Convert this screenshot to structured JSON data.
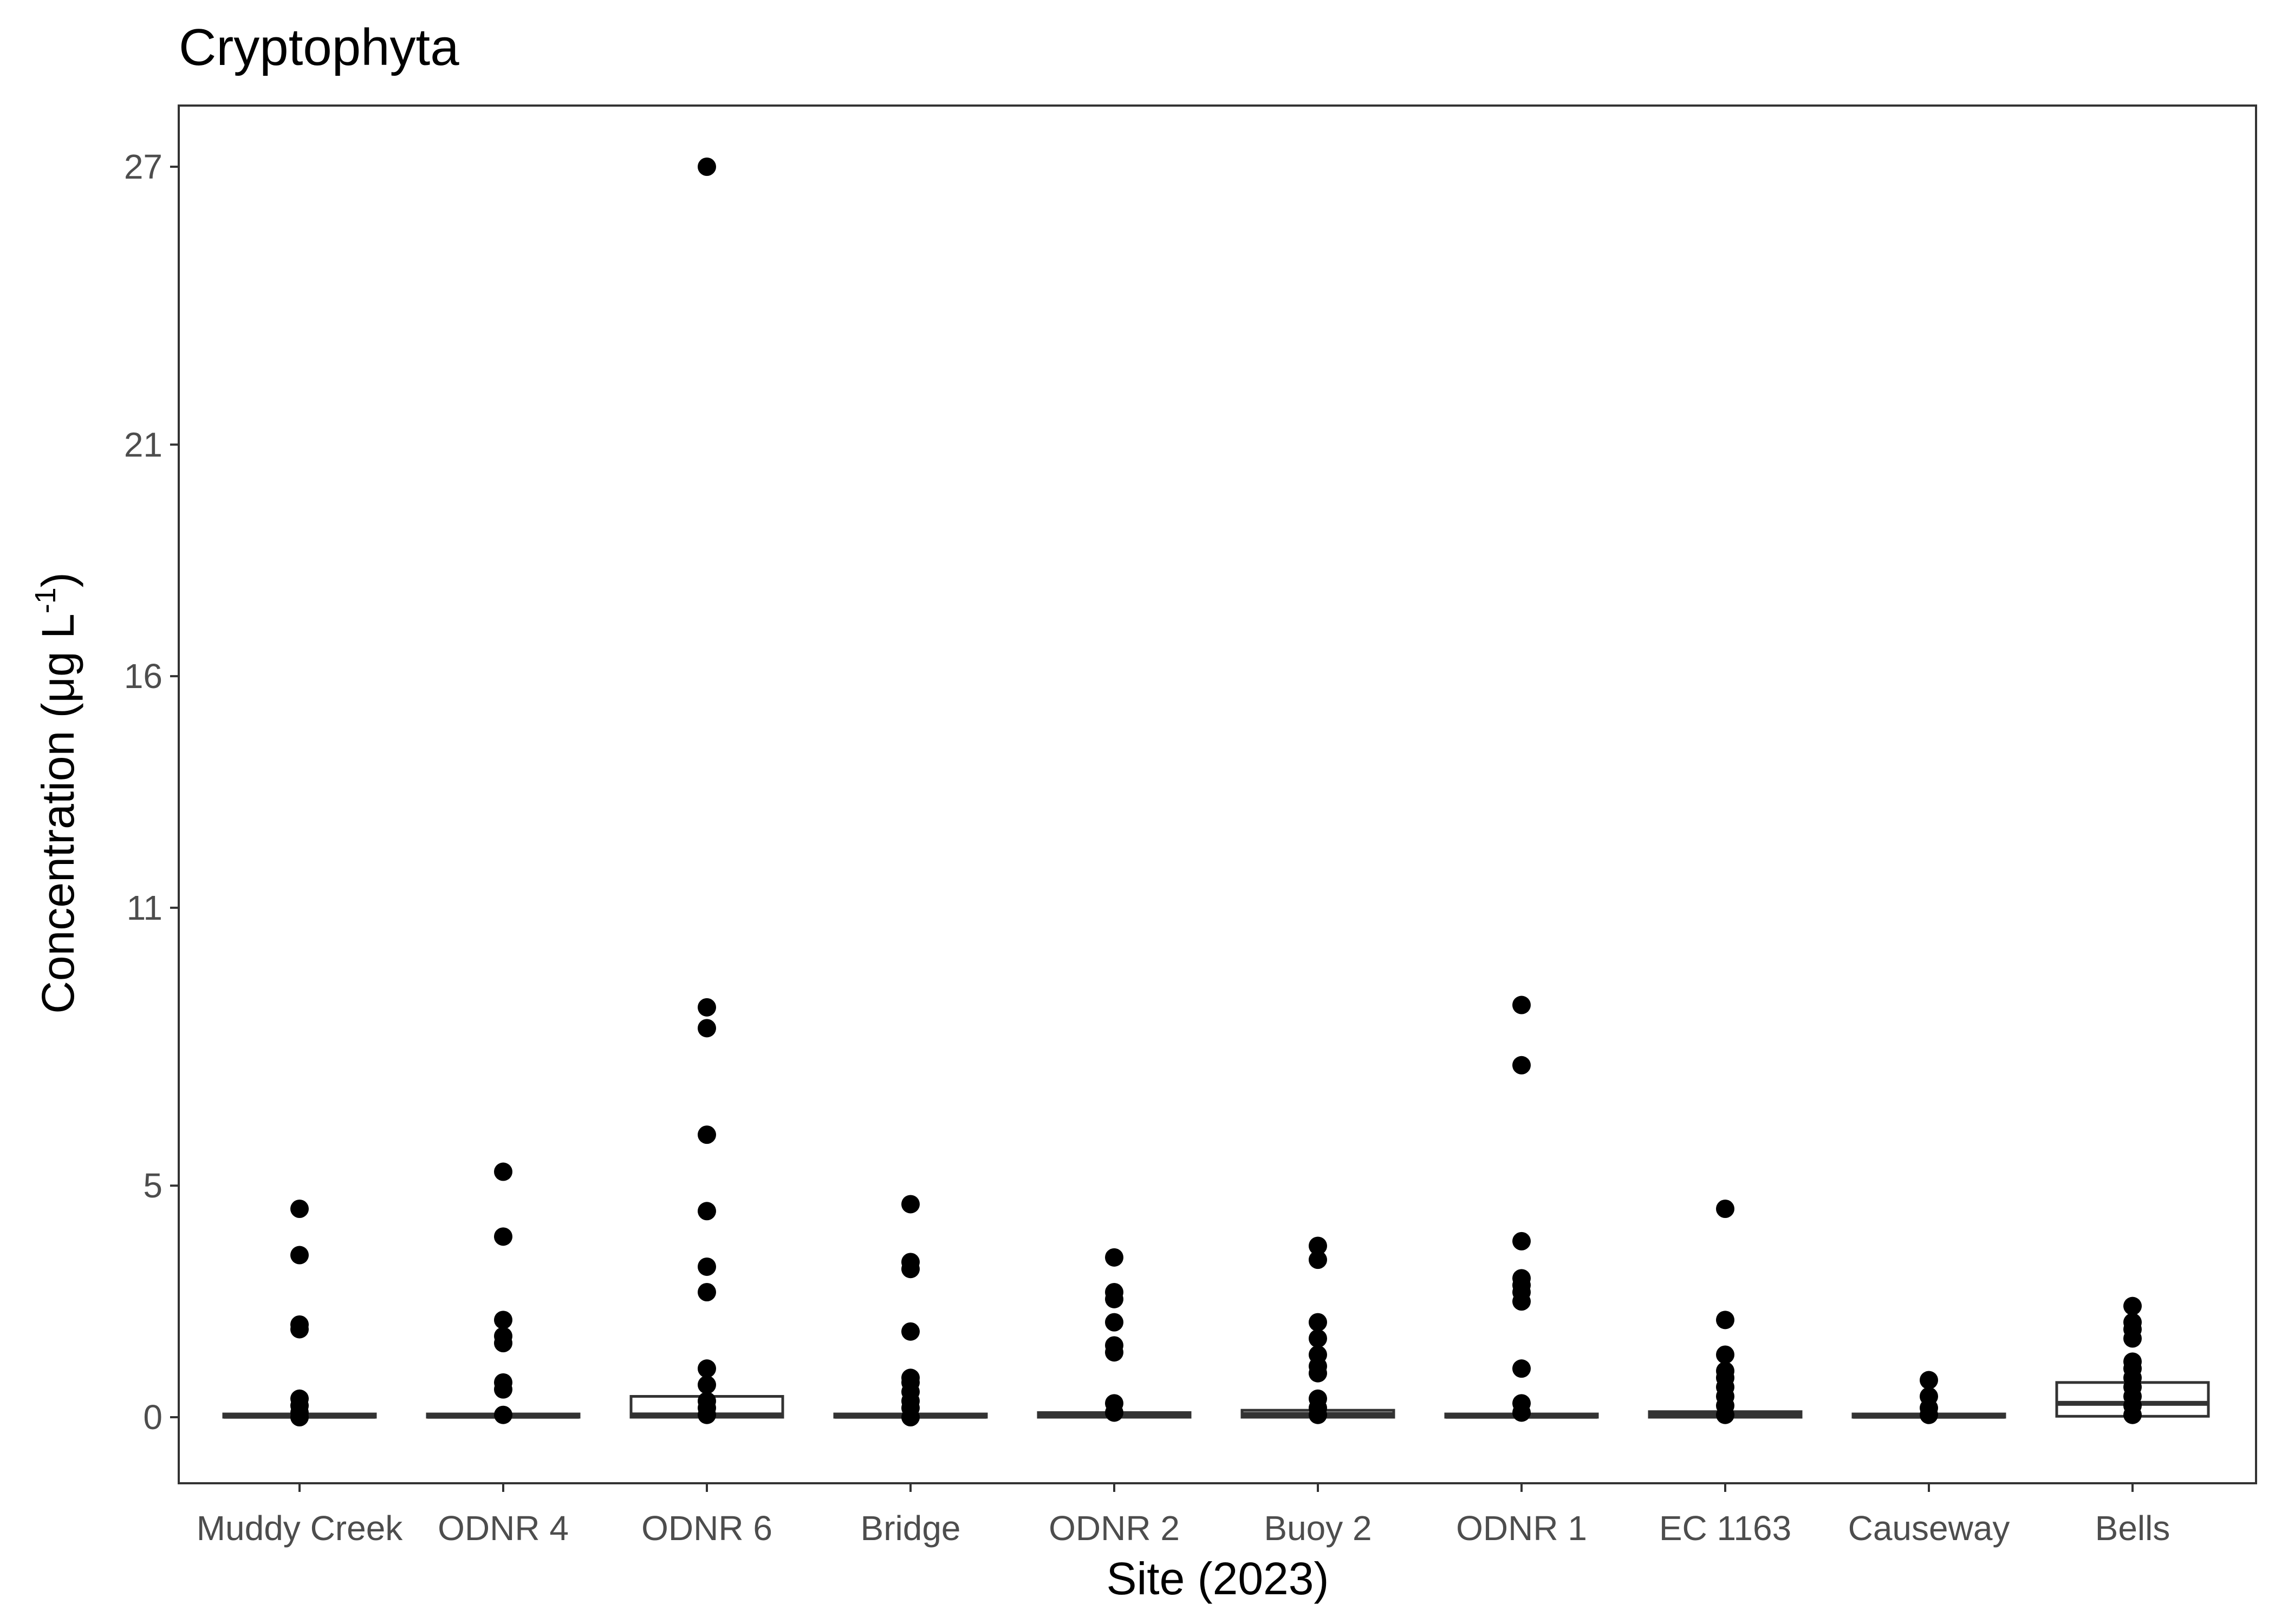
{
  "chart_data": {
    "type": "box",
    "title": "Cryptophyta",
    "xlabel": "Site (2023)",
    "ylabel": "Concentration (μg L",
    "ylabel_superscript": "-1",
    "ylabel_close": ")",
    "ylim": [
      -1.2,
      28.2
    ],
    "yticks": [
      0,
      5,
      11,
      16,
      21,
      27
    ],
    "grid": false,
    "categories": [
      "Muddy Creek",
      "ODNR 4",
      "ODNR 6",
      "Bridge",
      "ODNR 2",
      "Buoy 2",
      "ODNR 1",
      "EC 1163",
      "Causeway",
      "Bells"
    ],
    "boxes": [
      {
        "site": "Muddy Creek",
        "q1": 0.0,
        "median": 0.02,
        "q3": 0.06,
        "outliers": [
          0.0,
          0.1,
          0.25,
          0.4,
          1.9,
          2.0,
          3.5,
          4.5
        ]
      },
      {
        "site": "ODNR 4",
        "q1": 0.0,
        "median": 0.02,
        "q3": 0.06,
        "outliers": [
          0.05,
          0.6,
          0.75,
          1.6,
          1.75,
          2.1,
          3.9,
          5.3
        ]
      },
      {
        "site": "ODNR 6",
        "q1": 0.0,
        "median": 0.05,
        "q3": 0.45,
        "outliers": [
          0.05,
          0.2,
          0.35,
          0.7,
          1.05,
          2.7,
          3.25,
          4.45,
          6.1,
          8.4,
          8.85,
          27.0
        ]
      },
      {
        "site": "Bridge",
        "q1": 0.0,
        "median": 0.02,
        "q3": 0.06,
        "outliers": [
          0.0,
          0.2,
          0.35,
          0.55,
          0.75,
          0.85,
          1.85,
          3.2,
          3.35,
          4.6
        ]
      },
      {
        "site": "ODNR 2",
        "q1": 0.0,
        "median": 0.04,
        "q3": 0.1,
        "outliers": [
          0.1,
          0.3,
          1.4,
          1.55,
          2.05,
          2.55,
          2.7,
          3.45
        ]
      },
      {
        "site": "Buoy 2",
        "q1": 0.0,
        "median": 0.06,
        "q3": 0.15,
        "outliers": [
          0.05,
          0.2,
          0.4,
          0.95,
          1.1,
          1.35,
          1.7,
          2.05,
          3.4,
          3.7
        ]
      },
      {
        "site": "ODNR 1",
        "q1": 0.0,
        "median": 0.02,
        "q3": 0.06,
        "outliers": [
          0.1,
          0.3,
          1.05,
          2.5,
          2.7,
          2.85,
          3.0,
          3.8,
          7.6,
          8.9
        ]
      },
      {
        "site": "EC 1163",
        "q1": 0.0,
        "median": 0.05,
        "q3": 0.12,
        "outliers": [
          0.05,
          0.25,
          0.45,
          0.65,
          0.85,
          1.0,
          1.35,
          2.1,
          4.5
        ]
      },
      {
        "site": "Causeway",
        "q1": 0.0,
        "median": 0.02,
        "q3": 0.06,
        "outliers": [
          0.05,
          0.2,
          0.45,
          0.8
        ]
      },
      {
        "site": "Bells",
        "q1": 0.02,
        "median": 0.3,
        "q3": 0.75,
        "outliers": [
          0.05,
          0.25,
          0.45,
          0.65,
          0.85,
          1.05,
          1.2,
          1.7,
          1.9,
          2.05,
          2.4
        ]
      }
    ]
  }
}
